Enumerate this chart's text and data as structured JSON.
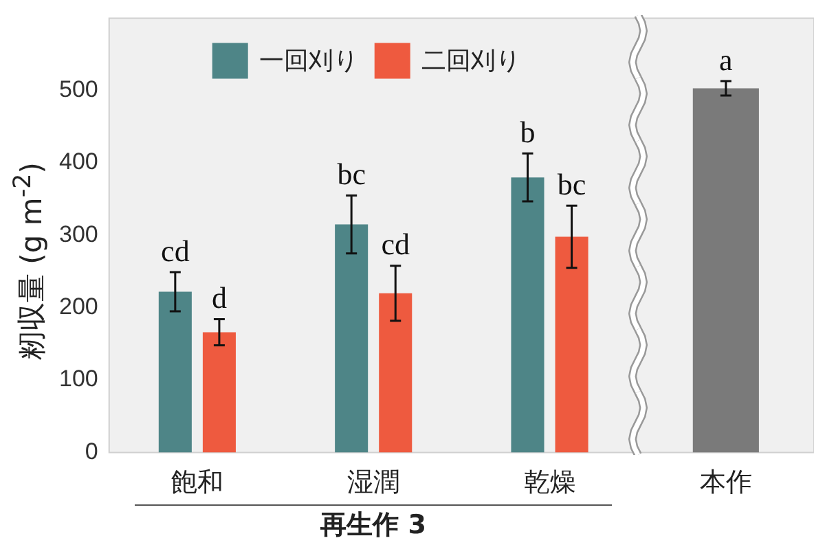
{
  "chart_data": {
    "type": "bar",
    "categories": [
      "飽和",
      "湿潤",
      "乾燥",
      "本作"
    ],
    "series": [
      {
        "name": "一回刈り",
        "color": "#4e8587",
        "values": [
          222,
          315,
          380,
          null
        ],
        "errors": [
          27,
          40,
          33,
          null
        ],
        "value_labels": [
          "cd",
          "bc",
          "b",
          null
        ]
      },
      {
        "name": "二回刈り",
        "color": "#ee5a3f",
        "values": [
          166,
          220,
          298,
          null
        ],
        "errors": [
          18,
          38,
          43,
          null
        ],
        "value_labels": [
          "d",
          "cd",
          "bc",
          null
        ]
      },
      {
        "color": "#7a7a7a",
        "values": [
          null,
          null,
          null,
          503
        ],
        "errors": [
          null,
          null,
          null,
          10
        ],
        "value_labels": [
          null,
          null,
          null,
          "a"
        ]
      }
    ],
    "ylabel": "籾収量 (g m$^{-2}$)",
    "xlabel": "再生作 3",
    "ylim": [
      0,
      600
    ],
    "yticks": [
      0,
      100,
      200,
      300,
      400,
      500
    ],
    "grid": false,
    "legend": "top"
  }
}
